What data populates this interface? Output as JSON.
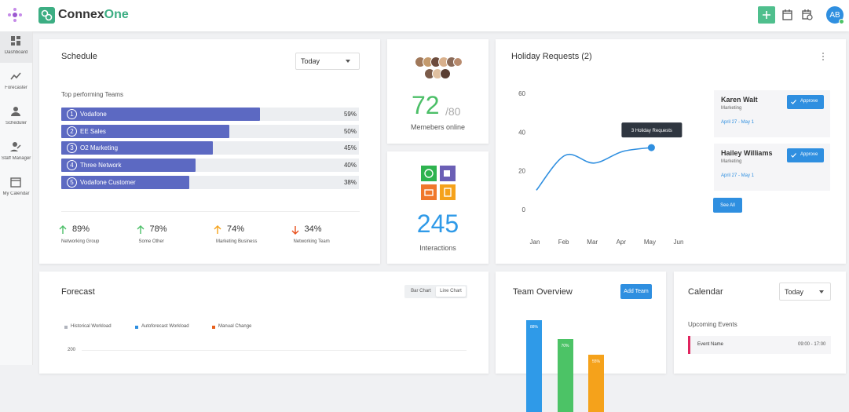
{
  "app": {
    "name_prefix": "Connex",
    "name_suffix": "One",
    "avatar": "AB"
  },
  "sidebar": [
    "Dashboard",
    "Forecaster",
    "Scheduler",
    "Staff Manager",
    "My Calendar"
  ],
  "schedule": {
    "title": "Schedule",
    "dropdown": "Today",
    "subtitle": "Top performing Teams",
    "teams": {
      "ranks": [
        "1",
        "2",
        "3",
        "4",
        "5"
      ],
      "names": [
        "Vodafone",
        "EE Sales",
        "O2 Marketing",
        "Three Network",
        "Vodafone Customer"
      ],
      "values": [
        59,
        50,
        45,
        40,
        38
      ],
      "value_labels": [
        "59%",
        "50%",
        "45%",
        "40%",
        "38%"
      ]
    },
    "stats": [
      {
        "value": "89%",
        "label": "Networking Group",
        "trend": "up"
      },
      {
        "value": "78%",
        "label": "Some Other",
        "trend": "up"
      },
      {
        "value": "74%",
        "label": "Marketing Business",
        "trend": "up"
      },
      {
        "value": "34%",
        "label": "Networking Team",
        "trend": "down"
      }
    ]
  },
  "members": {
    "value": "72",
    "total": "/80",
    "label": "Memebers online"
  },
  "interactions": {
    "value": "245",
    "label": "Interactions"
  },
  "holiday": {
    "title": "Holiday Requests (2)",
    "chart": {
      "type": "line",
      "categories": [
        "Jan",
        "Feb",
        "Mar",
        "Apr",
        "May",
        "Jun"
      ],
      "values": [
        10,
        28,
        24,
        30,
        32,
        null
      ],
      "color": "#2f8fe0",
      "ylim": [
        0,
        60
      ],
      "yticks": [
        0,
        20,
        40,
        60
      ],
      "tooltip": "3 Holiday Requests"
    },
    "requests": [
      {
        "name": "Karen Walt",
        "dept": "Marketing",
        "dates": "April 27 - May 1",
        "button": "Approve"
      },
      {
        "name": "Hailey Williams",
        "dept": "Marketing",
        "dates": "April 27 - May 1",
        "button": "Approve"
      }
    ],
    "see_all": "See All"
  },
  "forecast": {
    "title": "Forecast",
    "toggles": [
      "Bar Chart",
      "Line Chart"
    ],
    "legend": [
      {
        "name": "Historical Workload",
        "color": "#b0b4bd"
      },
      {
        "name": "Autoforecast Workload",
        "color": "#2f8fe0"
      },
      {
        "name": "Manual Change",
        "color": "#e8601c"
      }
    ],
    "yticks": [
      200
    ]
  },
  "team": {
    "title": "Team Overview",
    "button": "Add Team",
    "chart": {
      "type": "bar",
      "values": [
        88,
        70,
        55
      ],
      "value_labels": [
        "88%",
        "70%",
        "55%"
      ],
      "colors": [
        "#2f9ae8",
        "#4cc366",
        "#f5a21b"
      ]
    }
  },
  "calendar": {
    "title": "Calendar",
    "dropdown": "Today",
    "subtitle": "Upcoming Events",
    "event": {
      "name": "Event Name",
      "time": "09:00 - 17:00"
    }
  }
}
